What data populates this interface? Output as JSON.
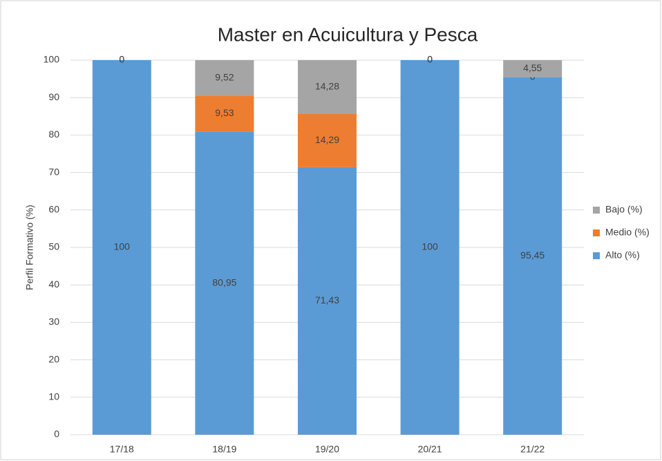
{
  "chart_data": {
    "type": "stacked_bar",
    "title": "Master en Acuicultura y Pesca",
    "y_label": "Perfil Formativo (%)",
    "categories": [
      "17/18",
      "18/19",
      "19/20",
      "20/21",
      "21/22"
    ],
    "series": [
      {
        "name": "Alto (%)",
        "color": "#5b9bd5",
        "values": [
          100,
          80.95,
          71.43,
          100,
          95.45
        ],
        "value_labels": [
          "100",
          "80,95",
          "71,43",
          "100",
          "95,45"
        ]
      },
      {
        "name": "Medio (%)",
        "color": "#ed7d31",
        "values": [
          0,
          9.53,
          14.29,
          0,
          0
        ],
        "value_labels": [
          "0",
          "9,53",
          "14,29",
          "0",
          "0"
        ]
      },
      {
        "name": "Bajo (%)",
        "color": "#a5a5a5",
        "values": [
          0,
          9.52,
          14.28,
          0,
          4.55
        ],
        "value_labels": [
          "0",
          "9,52",
          "14,28",
          "0",
          "4,55"
        ]
      }
    ],
    "ylim": [
      0,
      100
    ],
    "yticks": [
      0,
      10,
      20,
      30,
      40,
      50,
      60,
      70,
      80,
      90,
      100
    ],
    "grid": true,
    "legend": "right"
  }
}
